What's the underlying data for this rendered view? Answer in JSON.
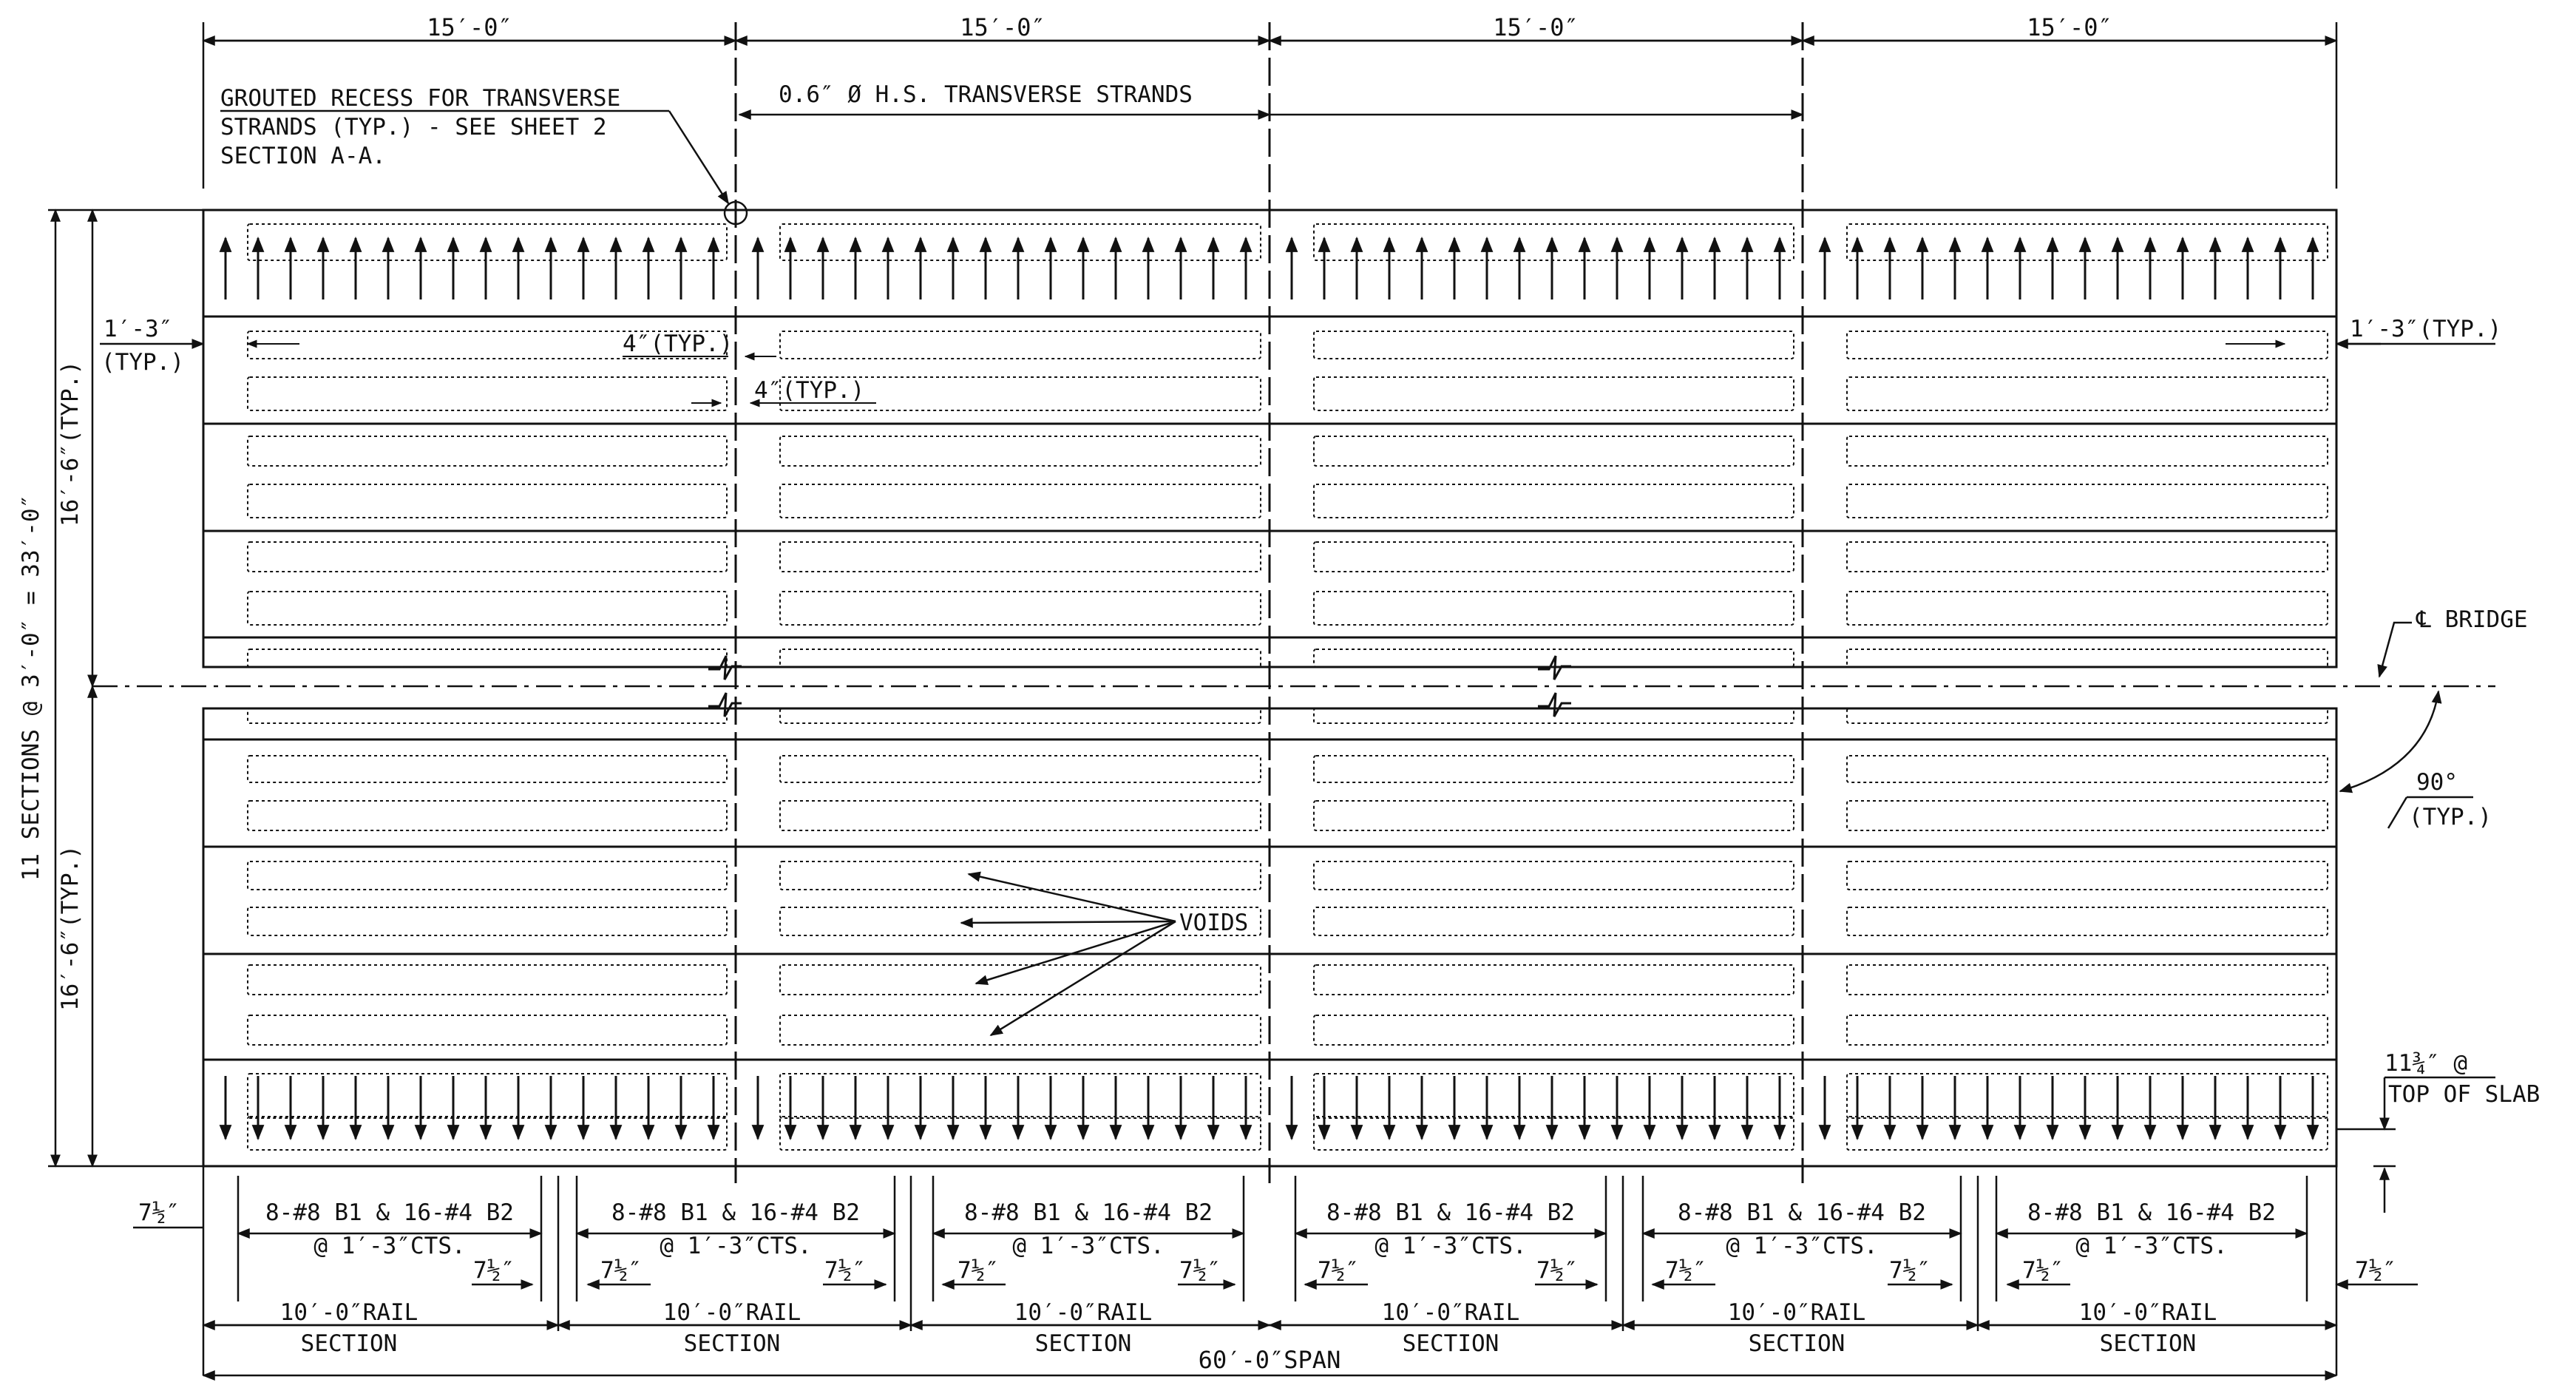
{
  "dims": {
    "top_bay": "15′-0″",
    "section_spacing": "11 SECTIONS @ 3′-0″ = 33′-0″",
    "half_width": "16′-6″(TYP.)",
    "edge_left_val": "1′-3″",
    "edge_left_typ": "(TYP.)",
    "edge_right": "1′-3″(TYP.)",
    "void_gap": "4″(TYP.)",
    "rail_edge": "7½″",
    "span": "60′-0″SPAN",
    "slab_a": "11¾″ @",
    "slab_b": "TOP OF SLAB"
  },
  "notes": {
    "recess_1": "GROUTED RECESS FOR TRANSVERSE",
    "recess_2": "STRANDS (TYP.) - SEE SHEET 2",
    "recess_3": "SECTION A-A.",
    "strands": "0.6″ Ø H.S. TRANSVERSE STRANDS",
    "bridge": "℄ BRIDGE",
    "angle": "90°",
    "angle_typ": "(TYP.)",
    "voids": "VOIDS"
  },
  "rails": [
    {
      "rebar": "8-#8 B1 & 16-#4 B2",
      "spacing": "@ 1′-3″CTS.",
      "length": "10′-0″RAIL",
      "label": "SECTION"
    },
    {
      "rebar": "8-#8 B1 & 16-#4 B2",
      "spacing": "@ 1′-3″CTS.",
      "length": "10′-0″RAIL",
      "label": "SECTION"
    },
    {
      "rebar": "8-#8 B1 & 16-#4 B2",
      "spacing": "@ 1′-3″CTS.",
      "length": "10′-0″RAIL",
      "label": "SECTION"
    },
    {
      "rebar": "8-#8 B1 & 16-#4 B2",
      "spacing": "@ 1′-3″CTS.",
      "length": "10′-0″RAIL",
      "label": "SECTION"
    },
    {
      "rebar": "8-#8 B1 & 16-#4 B2",
      "spacing": "@ 1′-3″CTS.",
      "length": "10′-0″RAIL",
      "label": "SECTION"
    },
    {
      "rebar": "8-#8 B1 & 16-#4 B2",
      "spacing": "@ 1′-3″CTS.",
      "length": "10′-0″RAIL",
      "label": "SECTION"
    }
  ]
}
